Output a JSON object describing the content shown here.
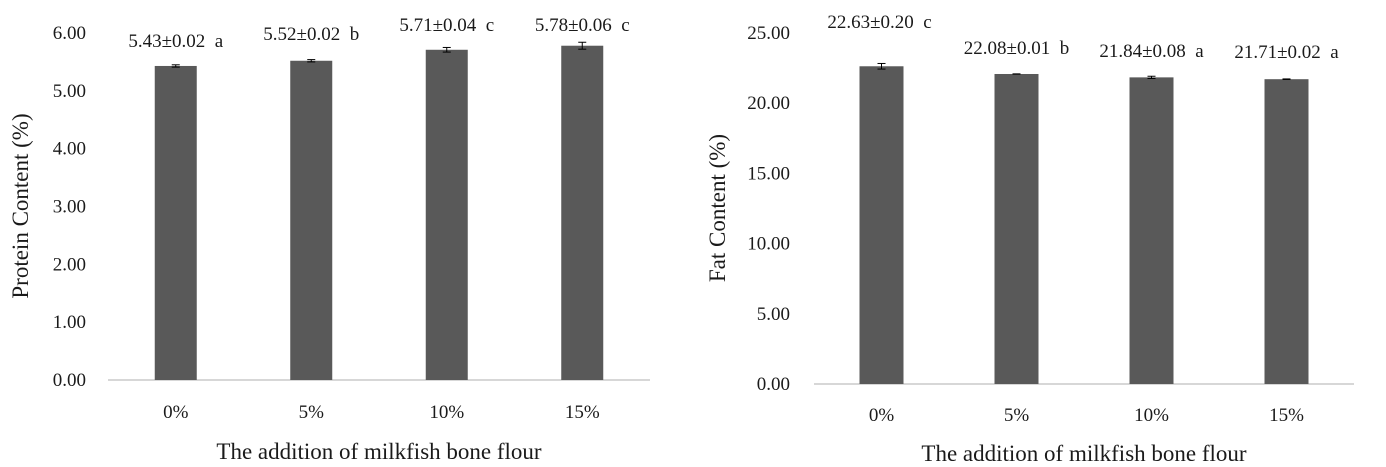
{
  "colors": {
    "bar": "#595959",
    "axis": "#bfbfbf",
    "text": "#1a1a1a"
  },
  "chart_data": [
    {
      "type": "bar",
      "categories": [
        "0%",
        "5%",
        "10%",
        "15%"
      ],
      "values": [
        5.43,
        5.52,
        5.71,
        5.78
      ],
      "errors": [
        0.02,
        0.02,
        0.04,
        0.06
      ],
      "data_labels": [
        "5.43±0.02  a",
        "5.52±0.02  b",
        "5.71±0.04  c",
        "5.78±0.06  c"
      ],
      "yticks": [
        "0.00",
        "1.00",
        "2.00",
        "3.00",
        "4.00",
        "5.00",
        "6.00"
      ],
      "ylim": [
        0,
        6
      ],
      "xlabel": "The addition of milkfish bone flour",
      "ylabel": "Protein Content (%)",
      "grid": false
    },
    {
      "type": "bar",
      "categories": [
        "0%",
        "5%",
        "10%",
        "15%"
      ],
      "values": [
        22.63,
        22.08,
        21.84,
        21.71
      ],
      "errors": [
        0.2,
        0.01,
        0.08,
        0.02
      ],
      "data_labels": [
        "22.63±0.20  c",
        "22.08±0.01  b",
        "21.84±0.08  a",
        "21.71±0.02  a"
      ],
      "yticks": [
        "0.00",
        "5.00",
        "10.00",
        "15.00",
        "20.00",
        "25.00"
      ],
      "ylim": [
        0,
        25
      ],
      "xlabel": "The addition of milkfish bone flour",
      "ylabel": "Fat Content (%)",
      "grid": false
    }
  ]
}
